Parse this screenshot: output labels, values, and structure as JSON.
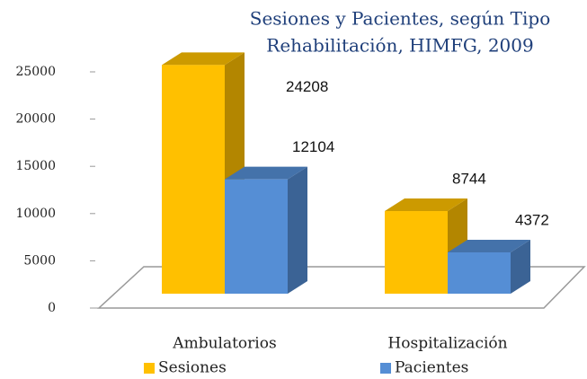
{
  "chart_data": {
    "type": "bar3d",
    "title": [
      "Sesiones y Pacientes, según Tipo",
      "Rehabilitación, HIMFG, 2009"
    ],
    "categories": [
      "Ambulatorios",
      "Hospitalización"
    ],
    "series": [
      {
        "name": "Sesiones",
        "color": "#ffc000",
        "values": [
          24208,
          8744
        ]
      },
      {
        "name": "Pacientes",
        "color": "#558ed5",
        "values": [
          12104,
          4372
        ]
      }
    ],
    "ylim": [
      0,
      25000
    ],
    "yticks": [
      0,
      5000,
      10000,
      15000,
      20000,
      25000
    ]
  }
}
